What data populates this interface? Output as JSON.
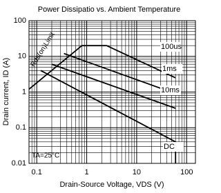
{
  "chart_data": {
    "type": "line",
    "title": "Power Dissipatio vs. Ambient Temperature",
    "x_label": "Drain-Source Voltage, VDS (V)",
    "y_label": "Drain current, ID (A)",
    "annotations": [
      "Rds(on)Limit",
      "TA=25°C"
    ],
    "log_x": true,
    "log_y": true,
    "grid": true,
    "minor_grid": true,
    "xlim": [
      0.07,
      150
    ],
    "ylim": [
      0.01,
      100
    ],
    "xticks": [
      0.1,
      1,
      10,
      100
    ],
    "yticks": [
      0.01,
      0.1,
      1,
      10,
      100
    ],
    "series": [
      {
        "name": "100us",
        "color": "#000000",
        "x": [
          0.8,
          2.5,
          60
        ],
        "values": [
          20,
          20,
          2.5
        ]
      },
      {
        "name": "1ms",
        "color": "#000000",
        "x": [
          0.35,
          60
        ],
        "values": [
          12,
          0.9
        ]
      },
      {
        "name": "10ms",
        "color": "#000000",
        "x": [
          0.2,
          60
        ],
        "values": [
          6,
          0.35
        ]
      },
      {
        "name": "DC",
        "color": "#000000",
        "x": [
          0.12,
          60,
          60
        ],
        "values": [
          4,
          0.04,
          0.01
        ]
      },
      {
        "name": "Rds(on)Limit",
        "color": "#000000",
        "x": [
          0.07,
          0.8
        ],
        "values": [
          1.2,
          20
        ]
      }
    ]
  }
}
